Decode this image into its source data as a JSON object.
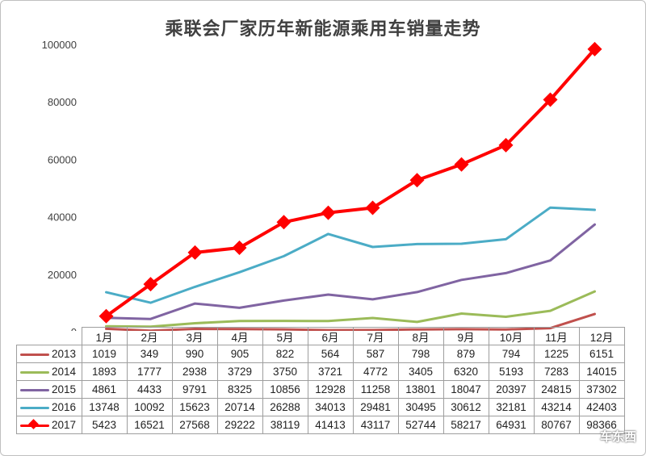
{
  "title": "乘联会厂家历年新能源乘用车销量走势",
  "watermark": "车东西",
  "chart_data": {
    "type": "line",
    "title": "乘联会厂家历年新能源乘用车销量走势",
    "categories": [
      "1月",
      "2月",
      "3月",
      "4月",
      "5月",
      "6月",
      "7月",
      "8月",
      "9月",
      "10月",
      "11月",
      "12月"
    ],
    "ylim": [
      0,
      100000
    ],
    "yticks": [
      "0",
      "20000",
      "40000",
      "60000",
      "80000",
      "100000"
    ],
    "grid": false,
    "legend": "data-table",
    "series": [
      {
        "name": "2013",
        "color": "#c0504d",
        "marker": "none",
        "values": [
          1019,
          349,
          990,
          905,
          822,
          564,
          587,
          798,
          879,
          794,
          1225,
          6151
        ]
      },
      {
        "name": "2014",
        "color": "#9bbb59",
        "marker": "none",
        "values": [
          1893,
          1777,
          2938,
          3729,
          3750,
          3721,
          4772,
          3405,
          6320,
          5193,
          7283,
          14015
        ]
      },
      {
        "name": "2015",
        "color": "#8064a2",
        "marker": "none",
        "values": [
          4861,
          4433,
          9791,
          8325,
          10856,
          12928,
          11258,
          13801,
          18047,
          20397,
          24815,
          37302
        ]
      },
      {
        "name": "2016",
        "color": "#4bacc6",
        "marker": "none",
        "values": [
          13748,
          10092,
          15623,
          20714,
          26288,
          34013,
          29481,
          30495,
          30612,
          32181,
          43214,
          42403
        ]
      },
      {
        "name": "2017",
        "color": "#ff0000",
        "marker": "diamond",
        "values": [
          5423,
          16521,
          27568,
          29222,
          38119,
          41413,
          43117,
          52744,
          58217,
          64931,
          80767,
          98366
        ]
      }
    ]
  }
}
